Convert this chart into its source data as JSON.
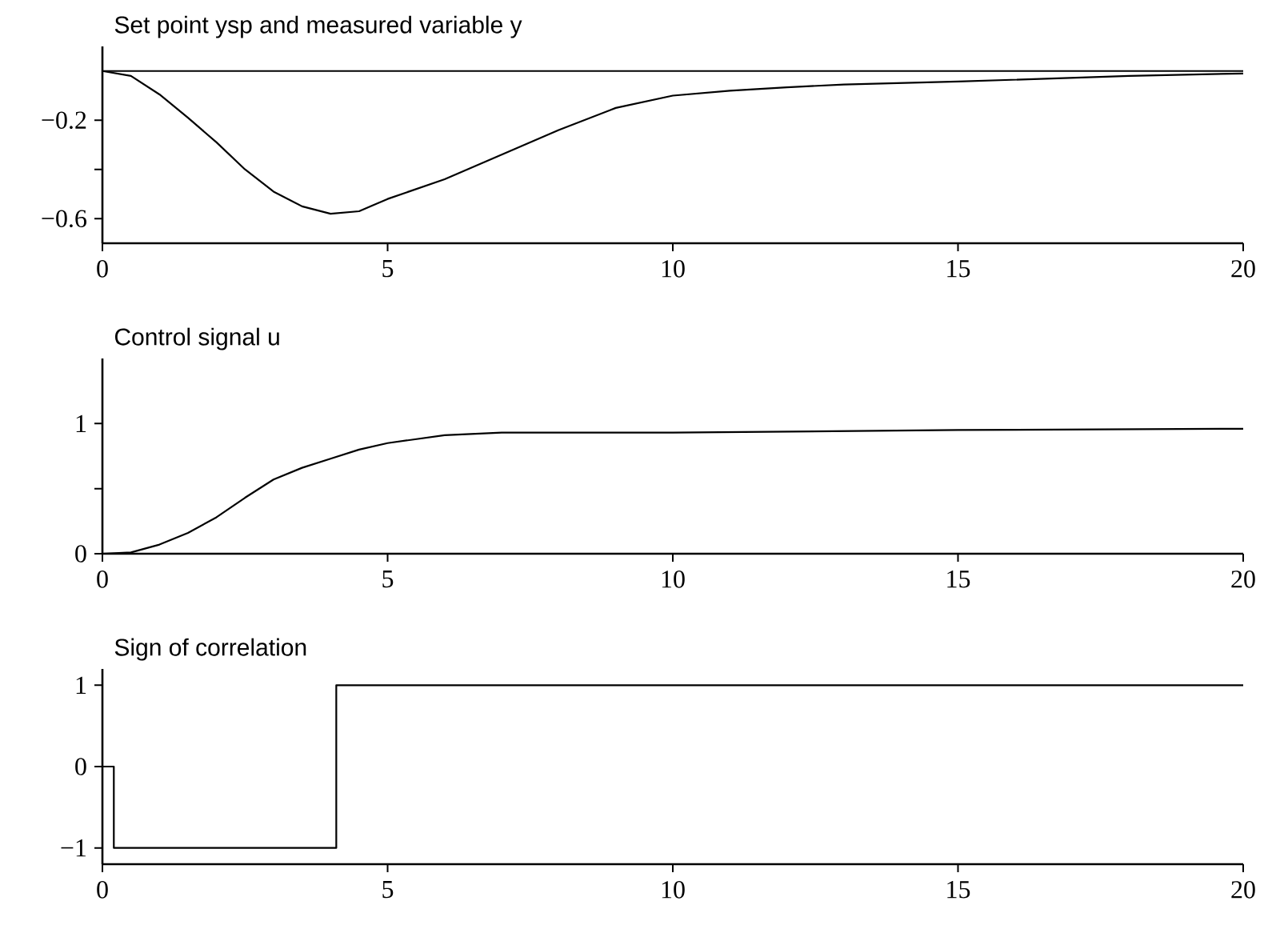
{
  "chart_data": [
    {
      "type": "line",
      "title": "Set point ysp and measured variable y",
      "xlim": [
        0,
        20
      ],
      "ylim": [
        -0.7,
        0.1
      ],
      "xticks": [
        0,
        5,
        10,
        15,
        20
      ],
      "yticks": [
        {
          "value": -0.6,
          "label": "−0.6"
        },
        {
          "value": -0.4,
          "label": null
        },
        {
          "value": -0.2,
          "label": "−0.2"
        }
      ],
      "series": [
        {
          "color": "#000000",
          "x": [
            0,
            20
          ],
          "values": [
            0,
            0
          ]
        },
        {
          "color": "#000000",
          "x": [
            0,
            0.5,
            1,
            1.5,
            2,
            2.5,
            3,
            3.5,
            4,
            4.5,
            5,
            6,
            7,
            8,
            9,
            10,
            11,
            12,
            13,
            15,
            18,
            20
          ],
          "values": [
            0,
            -0.02,
            -0.095,
            -0.19,
            -0.29,
            -0.4,
            -0.49,
            -0.55,
            -0.58,
            -0.57,
            -0.52,
            -0.44,
            -0.34,
            -0.24,
            -0.15,
            -0.1,
            -0.08,
            -0.066,
            -0.055,
            -0.043,
            -0.02,
            -0.01
          ]
        }
      ]
    },
    {
      "type": "line",
      "title": "Control signal u",
      "xlim": [
        0,
        20
      ],
      "ylim": [
        0,
        1.5
      ],
      "xticks": [
        0,
        5,
        10,
        15,
        20
      ],
      "yticks": [
        0,
        {
          "value": 0.5,
          "label": null
        },
        1
      ],
      "series": [
        {
          "color": "#000000",
          "x": [
            0,
            0.5,
            1,
            1.5,
            2,
            2.5,
            3,
            3.5,
            4,
            4.5,
            5,
            6,
            7,
            10,
            15,
            20
          ],
          "values": [
            0,
            0.01,
            0.07,
            0.16,
            0.28,
            0.43,
            0.57,
            0.66,
            0.73,
            0.8,
            0.85,
            0.91,
            0.93,
            0.93,
            0.95,
            0.96
          ]
        }
      ]
    },
    {
      "type": "step",
      "title": "Sign of correlation",
      "xlim": [
        0,
        20
      ],
      "ylim": [
        -1.2,
        1.2
      ],
      "xticks": [
        0,
        5,
        10,
        15,
        20
      ],
      "yticks": [
        {
          "value": -1,
          "label": "−1"
        },
        0,
        1
      ],
      "series": [
        {
          "color": "#000000",
          "x": [
            0,
            0.2,
            4.1,
            20
          ],
          "values": [
            0,
            -1,
            1,
            1
          ]
        }
      ]
    }
  ]
}
